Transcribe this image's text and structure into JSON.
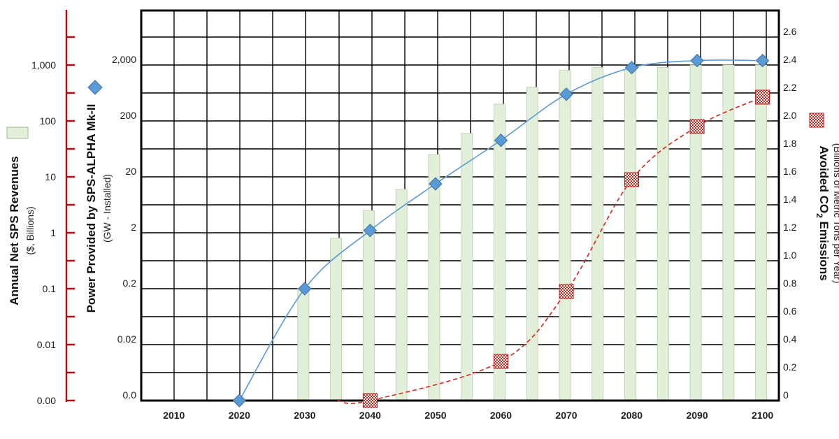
{
  "chart_data": {
    "type": "bar",
    "x_ticks": [
      "2010",
      "2020",
      "2030",
      "2040",
      "2050",
      "2060",
      "2070",
      "2080",
      "2090",
      "2100"
    ],
    "revenue_axis": {
      "label": "Annual Net SPS Revenues",
      "unit": "($, Billions)",
      "ticks": [
        "0.00",
        "0.01",
        "0.1",
        "1",
        "10",
        "100",
        "1,000"
      ],
      "scale": "log"
    },
    "power_axis": {
      "label": "Power Provided by SPS-ALPHA Mk-II",
      "unit": "(GW - Installed)",
      "ticks": [
        "0.0",
        "0.02",
        "0.2",
        "2",
        "20",
        "200",
        "2,000"
      ],
      "scale": "log"
    },
    "co2_axis": {
      "label_pre": "Avoided CO",
      "label_sub": "2",
      "label_post": " Emissions",
      "unit": "(Billions of Metric Tons per Year)",
      "ticks": [
        "0",
        "0.2",
        "0.4",
        "0.6",
        "0.8",
        "1.0",
        "1.2",
        "1.4",
        "1.6",
        "1.8",
        "2.0",
        "2.2",
        "2.4",
        "2.6"
      ],
      "range": [
        0,
        2.6
      ]
    },
    "series": [
      {
        "name": "Annual Net SPS Revenues",
        "type": "bar",
        "axis": "revenue",
        "color": "#e2efd9",
        "x": [
          2030,
          2035,
          2040,
          2045,
          2050,
          2055,
          2060,
          2065,
          2070,
          2075,
          2080,
          2085,
          2090,
          2095,
          2100
        ],
        "values": [
          0.1,
          0.8,
          2.5,
          6,
          25,
          60,
          200,
          400,
          800,
          900,
          800,
          900,
          1000,
          1000,
          1000
        ]
      },
      {
        "name": "Power Provided by SPS-ALPHA Mk-II",
        "type": "line",
        "axis": "power",
        "color": "#5b9bd5",
        "marker": "diamond",
        "x": [
          2020,
          2030,
          2040,
          2050,
          2060,
          2070,
          2080,
          2090,
          2100
        ],
        "values": [
          0.002,
          0.2,
          2.2,
          15,
          90,
          600,
          1800,
          2400,
          2400
        ]
      },
      {
        "name": "Avoided CO2 Emissions",
        "type": "line",
        "axis": "co2",
        "color": "#d9241c",
        "marker": "checkered-square",
        "x": [
          2040,
          2060,
          2070,
          2080,
          2090,
          2100
        ],
        "values": [
          0.0,
          0.28,
          0.78,
          1.58,
          1.96,
          2.17
        ]
      }
    ],
    "grid": true
  }
}
